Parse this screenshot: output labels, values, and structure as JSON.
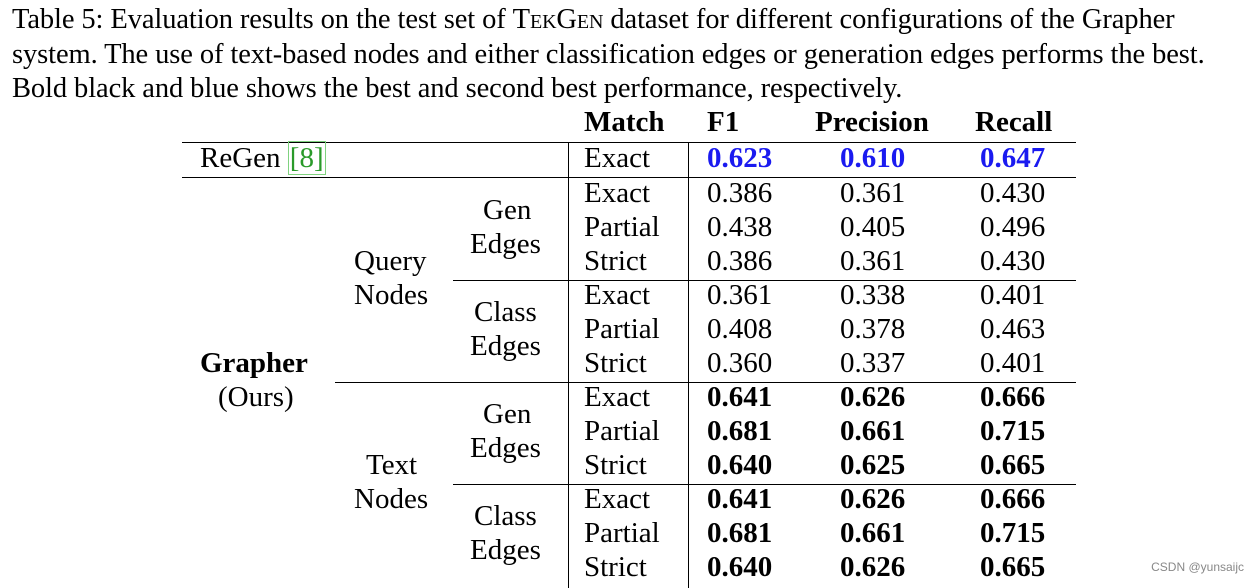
{
  "caption": {
    "prefix": "Table 5: Evaluation results on the test set of ",
    "dataset": "TekGen",
    "suffix": " dataset for different configurations of the Grapher system. The use of text-based nodes and either classification edges or generation edges performs the best. Bold black and blue shows the best and second best performance, respectively."
  },
  "headers": {
    "match": "Match",
    "f1": "F1",
    "precision": "Precision",
    "recall": "Recall"
  },
  "regen": {
    "label": "ReGen ",
    "cite": "[8]",
    "match": "Exact",
    "f1": "0.623",
    "precision": "0.610",
    "recall": "0.647"
  },
  "grapher": {
    "name": "Grapher",
    "sub": "(Ours)"
  },
  "node_groups": [
    {
      "line1": "Query",
      "line2": "Nodes"
    },
    {
      "line1": "Text",
      "line2": "Nodes"
    }
  ],
  "edge_groups": [
    {
      "line1": "Gen",
      "line2": "Edges"
    },
    {
      "line1": "Class",
      "line2": "Edges"
    },
    {
      "line1": "Gen",
      "line2": "Edges"
    },
    {
      "line1": "Class",
      "line2": "Edges"
    }
  ],
  "rows": [
    {
      "match": "Exact",
      "f1": "0.386",
      "precision": "0.361",
      "recall": "0.430",
      "bold": false
    },
    {
      "match": "Partial",
      "f1": "0.438",
      "precision": "0.405",
      "recall": "0.496",
      "bold": false
    },
    {
      "match": "Strict",
      "f1": "0.386",
      "precision": "0.361",
      "recall": "0.430",
      "bold": false
    },
    {
      "match": "Exact",
      "f1": "0.361",
      "precision": "0.338",
      "recall": "0.401",
      "bold": false
    },
    {
      "match": "Partial",
      "f1": "0.408",
      "precision": "0.378",
      "recall": "0.463",
      "bold": false
    },
    {
      "match": "Strict",
      "f1": "0.360",
      "precision": "0.337",
      "recall": "0.401",
      "bold": false
    },
    {
      "match": "Exact",
      "f1": "0.641",
      "precision": "0.626",
      "recall": "0.666",
      "bold": true
    },
    {
      "match": "Partial",
      "f1": "0.681",
      "precision": "0.661",
      "recall": "0.715",
      "bold": true
    },
    {
      "match": "Strict",
      "f1": "0.640",
      "precision": "0.625",
      "recall": "0.665",
      "bold": true
    },
    {
      "match": "Exact",
      "f1": "0.641",
      "precision": "0.626",
      "recall": "0.666",
      "bold": true
    },
    {
      "match": "Partial",
      "f1": "0.681",
      "precision": "0.661",
      "recall": "0.715",
      "bold": true
    },
    {
      "match": "Strict",
      "f1": "0.640",
      "precision": "0.626",
      "recall": "0.665",
      "bold": true
    }
  ],
  "watermark": "CSDN @yunsaijc"
}
